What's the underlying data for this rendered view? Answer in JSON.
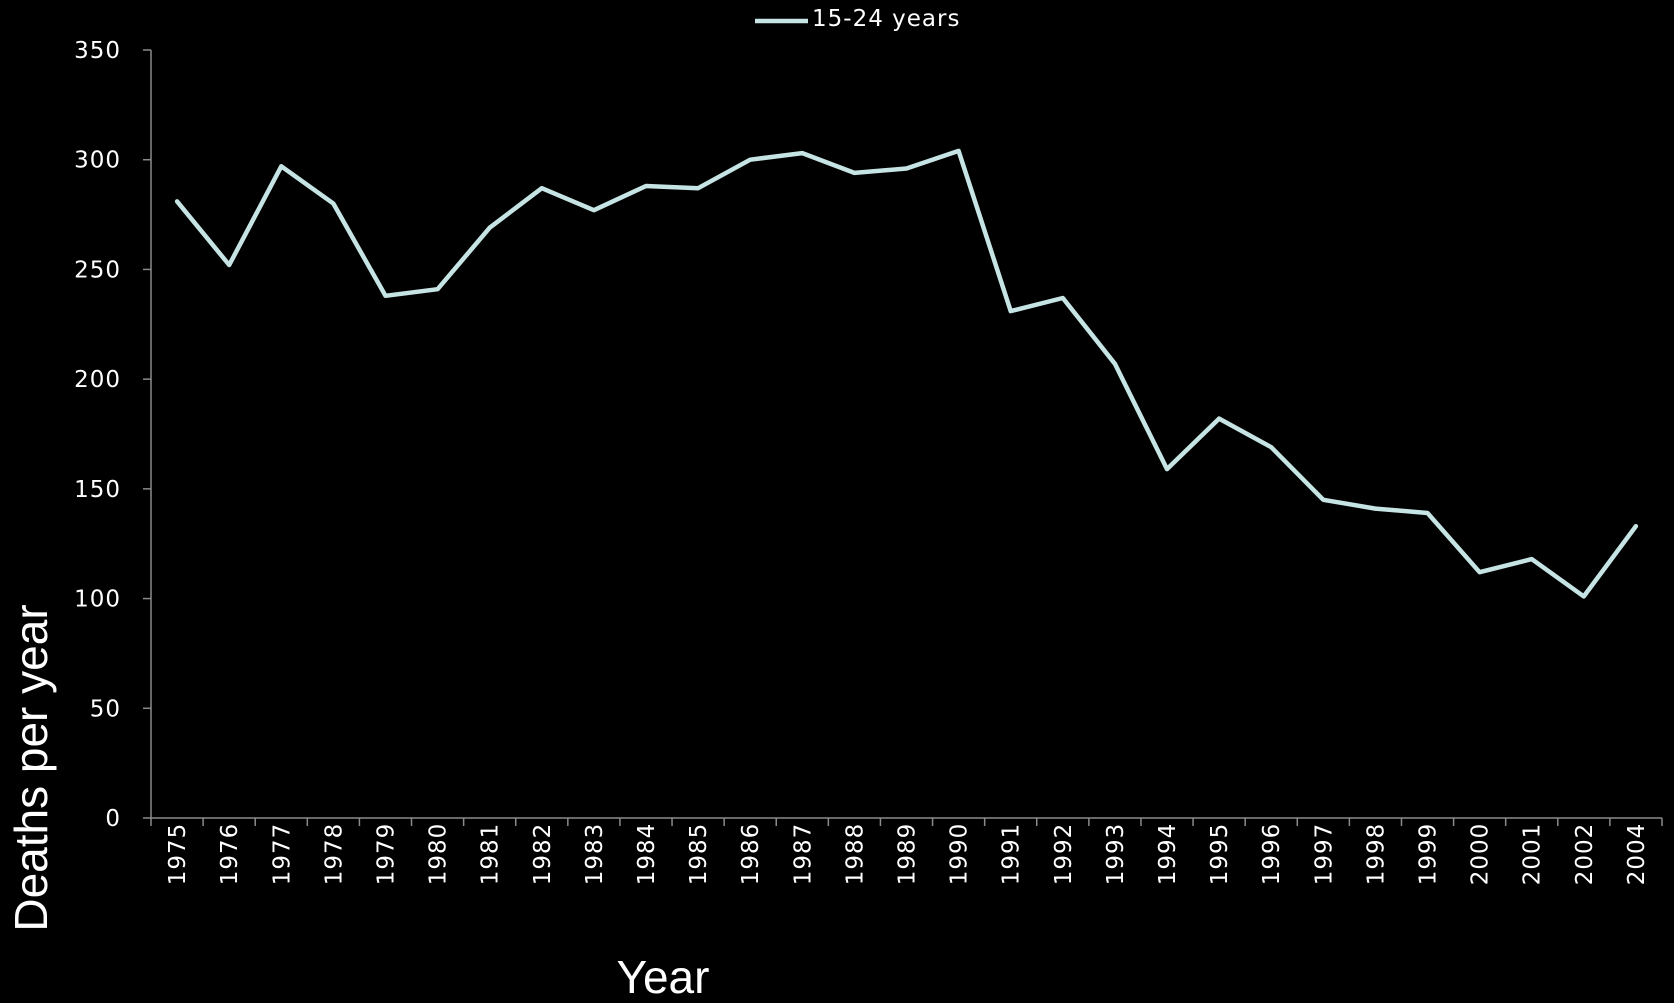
{
  "chart_data": {
    "type": "line",
    "categories": [
      "1975",
      "1976",
      "1977",
      "1978",
      "1979",
      "1980",
      "1981",
      "1982",
      "1983",
      "1984",
      "1985",
      "1986",
      "1987",
      "1988",
      "1989",
      "1990",
      "1991",
      "1992",
      "1993",
      "1994",
      "1995",
      "1996",
      "1997",
      "1998",
      "1999",
      "2000",
      "2001",
      "2002",
      "2004"
    ],
    "series": [
      {
        "name": "15-24 years",
        "values": [
          281,
          252,
          297,
          280,
          238,
          241,
          269,
          287,
          277,
          288,
          287,
          300,
          303,
          294,
          296,
          304,
          231,
          237,
          207,
          159,
          182,
          169,
          145,
          141,
          139,
          112,
          118,
          101,
          133
        ]
      }
    ],
    "xlabel": "Year",
    "ylabel": "Deaths per year",
    "ylim": [
      0,
      350
    ],
    "yticks": [
      "0",
      "50",
      "100",
      "150",
      "200",
      "250",
      "300",
      "350"
    ],
    "legend_position": "top-center",
    "grid": false,
    "colors": {
      "background": "#000000",
      "line": "#c6e4e4",
      "axis": "#8a8a8a",
      "text": "#ffffff"
    }
  }
}
